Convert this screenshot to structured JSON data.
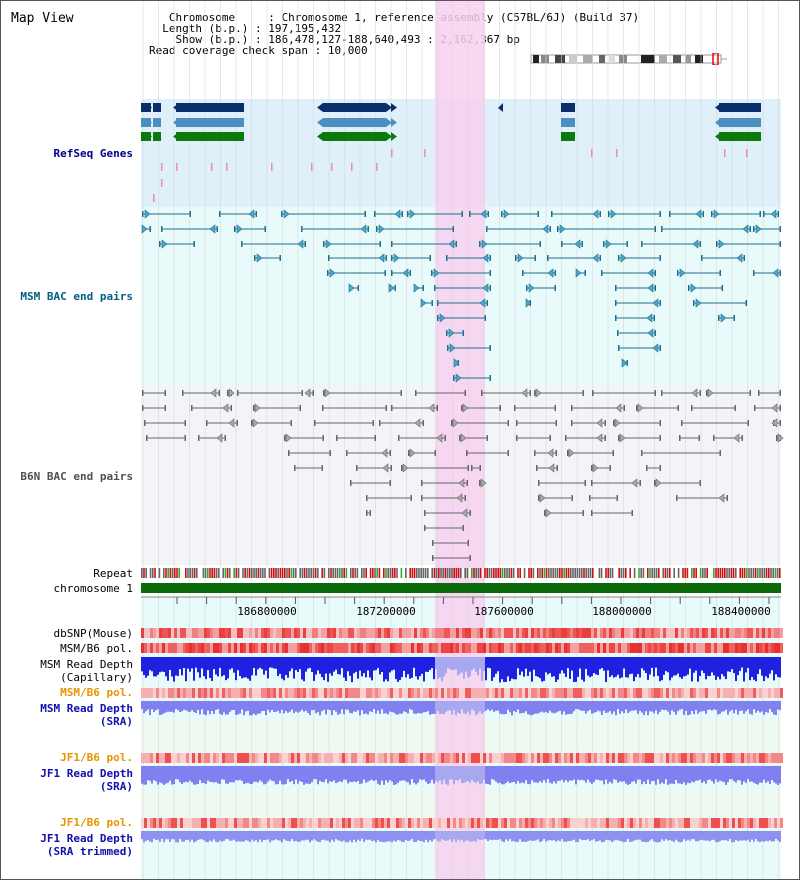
{
  "view": {
    "title": "Map View"
  },
  "header": {
    "chromosome_key": "Chromosome",
    "chromosome_val": "Chromosome 1, reference assembly (C57BL/6J) (Build 37)",
    "length_key": "Length (b.p.)",
    "length_val": "197,195,432",
    "show_key": "Show (b.p.)",
    "show_val": "186,478,127-188,640,493 : 2,162,367 bp",
    "span_key": "Read coverage check span",
    "span_val": "10,000"
  },
  "tracks": {
    "refseq": {
      "label": "RefSeq Genes",
      "color": "#00008b"
    },
    "msm_bac": {
      "label": "MSM BAC end pairs",
      "color": "#006080"
    },
    "b6n_bac": {
      "label": "B6N BAC end pairs",
      "color": "#505050"
    },
    "repeat": {
      "label": "Repeat"
    },
    "chromosome": {
      "label": "chromosome 1"
    },
    "dbsnp": {
      "label": "dbSNP(Mouse)"
    },
    "msm_b6_pol_1": {
      "label": "MSM/B6 pol."
    },
    "msm_read_depth_cap": {
      "label_1": "MSM Read Depth",
      "label_2": "(Capillary)"
    },
    "msm_b6_pol_2": {
      "label": "MSM/B6 pol.",
      "color": "#e69500"
    },
    "msm_read_depth_sra": {
      "label_1": "MSM Read Depth",
      "label_2": "(SRA)",
      "color": "#1010b0"
    },
    "jf1_b6_pol_1": {
      "label": "JF1/B6 pol.",
      "color": "#e69500"
    },
    "jf1_read_depth_sra": {
      "label_1": "JF1 Read Depth",
      "label_2": "(SRA)",
      "color": "#1010b0"
    },
    "jf1_b6_pol_2": {
      "label": "JF1/B6 pol.",
      "color": "#e69500"
    },
    "jf1_read_depth_trim": {
      "label_1": "JF1 Read Depth",
      "label_2": "(SRA trimmed)",
      "color": "#1010b0"
    }
  },
  "axis": {
    "ticks": [
      "186800000",
      "187200000",
      "187600000",
      "188000000",
      "188400000"
    ]
  },
  "colors": {
    "highlight": "#f7d0f0",
    "refseq_bg": "#dff0fa",
    "msm_bg": "#e8fafa",
    "b6n_bg": "#f3f4f8",
    "lower_bg": "#e8fafa",
    "dark_navy": "#0b2f6b",
    "steel_blue": "#4a8fc0",
    "dark_green": "#0a7a0a",
    "snp_red": "#ee4444",
    "depth_blue": "#2020e0",
    "depth_light": "#8080f0"
  }
}
